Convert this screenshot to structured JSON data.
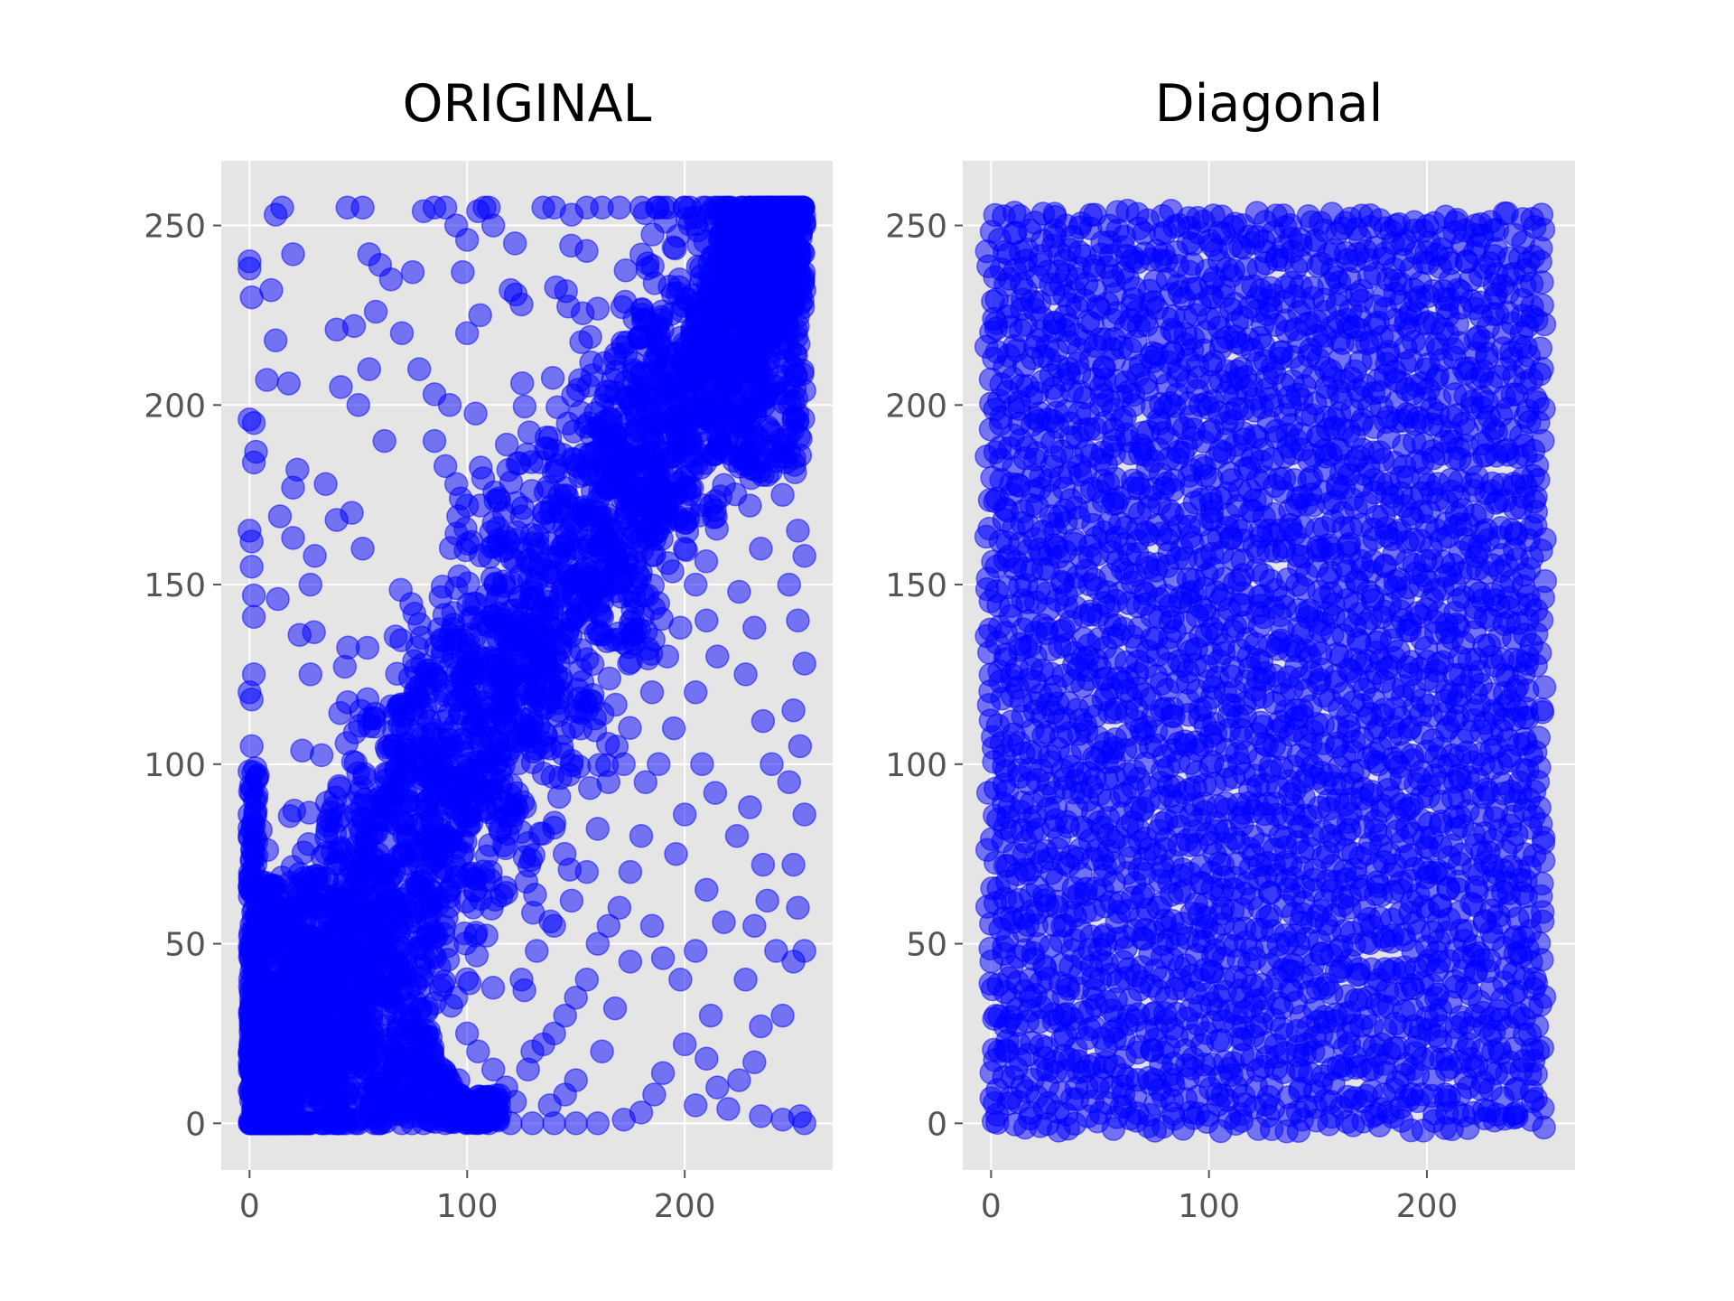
{
  "colors": {
    "panel_bg": "#E5E5E5",
    "grid": "#FFFFFF",
    "marker": "#0000FF",
    "tick_text": "#555555",
    "title_text": "#000000"
  },
  "chart_data": [
    {
      "type": "scatter",
      "title": "ORIGINAL",
      "xlabel": "",
      "ylabel": "",
      "xlim": [
        -13,
        268
      ],
      "ylim": [
        -13,
        268
      ],
      "xticks": [
        0,
        100,
        200
      ],
      "yticks": [
        0,
        50,
        100,
        150,
        200,
        250
      ],
      "xtick_labels": [
        "0",
        "100",
        "200"
      ],
      "ytick_labels": [
        "0",
        "50",
        "100",
        "150",
        "200",
        "250"
      ],
      "grid": true,
      "legend": "none",
      "marker_color": "#0000FF",
      "marker_alpha": 0.5,
      "points": [
        [
          0,
          240
        ],
        [
          0,
          238
        ],
        [
          1,
          230
        ],
        [
          2,
          195
        ],
        [
          0,
          196
        ],
        [
          3,
          187
        ],
        [
          2,
          184
        ],
        [
          0,
          165
        ],
        [
          1,
          162
        ],
        [
          1,
          155
        ],
        [
          2,
          147
        ],
        [
          2,
          141
        ],
        [
          0,
          120
        ],
        [
          2,
          125
        ],
        [
          1,
          118
        ],
        [
          1,
          105
        ],
        [
          0,
          98
        ],
        [
          1,
          92
        ],
        [
          0,
          86
        ],
        [
          0,
          80
        ],
        [
          1,
          73
        ],
        [
          0,
          66
        ],
        [
          12,
          253
        ],
        [
          15,
          255
        ],
        [
          20,
          242
        ],
        [
          10,
          232
        ],
        [
          12,
          218
        ],
        [
          8,
          207
        ],
        [
          18,
          206
        ],
        [
          22,
          182
        ],
        [
          20,
          177
        ],
        [
          14,
          169
        ],
        [
          20,
          163
        ],
        [
          13,
          146
        ],
        [
          23,
          136
        ],
        [
          28,
          125
        ],
        [
          40,
          221
        ],
        [
          45,
          255
        ],
        [
          52,
          255
        ],
        [
          48,
          222
        ],
        [
          55,
          242
        ],
        [
          58,
          226
        ],
        [
          60,
          239
        ],
        [
          65,
          235
        ],
        [
          42,
          205
        ],
        [
          50,
          200
        ],
        [
          55,
          210
        ],
        [
          62,
          190
        ],
        [
          47,
          170
        ],
        [
          52,
          160
        ],
        [
          35,
          178
        ],
        [
          40,
          168
        ],
        [
          30,
          158
        ],
        [
          28,
          150
        ],
        [
          80,
          254
        ],
        [
          85,
          255
        ],
        [
          90,
          255
        ],
        [
          95,
          250
        ],
        [
          100,
          246
        ],
        [
          105,
          254
        ],
        [
          108,
          255
        ],
        [
          110,
          255
        ],
        [
          112,
          250
        ],
        [
          98,
          237
        ],
        [
          120,
          232
        ],
        [
          125,
          228
        ],
        [
          122,
          245
        ],
        [
          75,
          237
        ],
        [
          70,
          220
        ],
        [
          78,
          210
        ],
        [
          85,
          203
        ],
        [
          92,
          200
        ],
        [
          100,
          220
        ],
        [
          106,
          225
        ],
        [
          85,
          190
        ],
        [
          90,
          183
        ],
        [
          95,
          178
        ],
        [
          100,
          172
        ],
        [
          135,
          255
        ],
        [
          140,
          255
        ],
        [
          148,
          253
        ],
        [
          155,
          255
        ],
        [
          162,
          255
        ],
        [
          170,
          255
        ],
        [
          180,
          255
        ],
        [
          190,
          255
        ],
        [
          200,
          255
        ],
        [
          210,
          255
        ],
        [
          220,
          255
        ],
        [
          230,
          255
        ],
        [
          240,
          255
        ],
        [
          250,
          255
        ],
        [
          255,
          250
        ],
        [
          250,
          245
        ],
        [
          245,
          240
        ],
        [
          255,
          232
        ],
        [
          252,
          222
        ],
        [
          248,
          212
        ],
        [
          255,
          204
        ],
        [
          250,
          196
        ],
        [
          253,
          186
        ],
        [
          245,
          175
        ],
        [
          252,
          165
        ],
        [
          255,
          158
        ],
        [
          248,
          150
        ],
        [
          252,
          140
        ],
        [
          255,
          128
        ],
        [
          250,
          115
        ],
        [
          253,
          105
        ],
        [
          248,
          95
        ],
        [
          255,
          86
        ],
        [
          250,
          72
        ],
        [
          252,
          60
        ],
        [
          255,
          48
        ],
        [
          250,
          45
        ],
        [
          255,
          0
        ],
        [
          253,
          2
        ],
        [
          230,
          172
        ],
        [
          235,
          160
        ],
        [
          225,
          148
        ],
        [
          232,
          138
        ],
        [
          228,
          125
        ],
        [
          236,
          112
        ],
        [
          240,
          100
        ],
        [
          230,
          88
        ],
        [
          224,
          80
        ],
        [
          236,
          72
        ],
        [
          238,
          62
        ],
        [
          232,
          55
        ],
        [
          242,
          48
        ],
        [
          228,
          40
        ],
        [
          235,
          27
        ],
        [
          200,
          160
        ],
        [
          205,
          150
        ],
        [
          210,
          140
        ],
        [
          215,
          130
        ],
        [
          205,
          120
        ],
        [
          195,
          110
        ],
        [
          208,
          100
        ],
        [
          214,
          92
        ],
        [
          200,
          86
        ],
        [
          196,
          75
        ],
        [
          210,
          65
        ],
        [
          218,
          56
        ],
        [
          205,
          48
        ],
        [
          198,
          40
        ],
        [
          212,
          30
        ],
        [
          200,
          22
        ],
        [
          190,
          14
        ],
        [
          186,
          8
        ],
        [
          180,
          3
        ],
        [
          172,
          1
        ],
        [
          160,
          0
        ],
        [
          150,
          0
        ],
        [
          140,
          0
        ],
        [
          130,
          0
        ],
        [
          120,
          0
        ],
        [
          110,
          0
        ],
        [
          100,
          0
        ],
        [
          90,
          0
        ],
        [
          80,
          0
        ],
        [
          70,
          0
        ],
        [
          60,
          0
        ],
        [
          50,
          0
        ],
        [
          40,
          0
        ],
        [
          180,
          80
        ],
        [
          175,
          70
        ],
        [
          170,
          60
        ],
        [
          165,
          55
        ],
        [
          160,
          50
        ],
        [
          155,
          40
        ],
        [
          150,
          35
        ],
        [
          145,
          30
        ],
        [
          140,
          25
        ],
        [
          135,
          22
        ],
        [
          130,
          20
        ],
        [
          128,
          15
        ],
        [
          175,
          45
        ],
        [
          185,
          55
        ],
        [
          190,
          46
        ],
        [
          168,
          32
        ],
        [
          162,
          20
        ],
        [
          150,
          12
        ],
        [
          145,
          8
        ],
        [
          138,
          5
        ],
        [
          210,
          18
        ],
        [
          215,
          10
        ],
        [
          225,
          12
        ],
        [
          232,
          17
        ],
        [
          245,
          30
        ],
        [
          205,
          5
        ],
        [
          220,
          4
        ],
        [
          235,
          2
        ],
        [
          245,
          1
        ],
        [
          95,
          35
        ],
        [
          100,
          25
        ],
        [
          105,
          20
        ],
        [
          112,
          15
        ],
        [
          118,
          10
        ],
        [
          122,
          6
        ],
        [
          108,
          3
        ],
        [
          96,
          12
        ],
        [
          88,
          8
        ],
        [
          80,
          15
        ],
        [
          125,
          40
        ],
        [
          132,
          48
        ],
        [
          140,
          55
        ],
        [
          148,
          62
        ],
        [
          155,
          70
        ],
        [
          160,
          82
        ],
        [
          165,
          95
        ],
        [
          172,
          100
        ],
        [
          185,
          120
        ],
        [
          192,
          130
        ],
        [
          198,
          138
        ],
        [
          188,
          100
        ],
        [
          182,
          95
        ]
      ],
      "density_band": {
        "description": "dense diagonal cloud",
        "centerline": [
          [
            0,
            8
          ],
          [
            255,
            255
          ]
        ],
        "half_width": [
          [
            0,
            45
          ],
          [
            60,
            55
          ],
          [
            130,
            60
          ],
          [
            200,
            45
          ],
          [
            255,
            25
          ]
        ],
        "dense_floor_below": [
          [
            0,
            70
          ],
          [
            60,
            60
          ],
          [
            100,
            0
          ]
        ]
      }
    },
    {
      "type": "scatter",
      "title": "Diagonal",
      "xlabel": "",
      "ylabel": "",
      "xlim": [
        -13,
        268
      ],
      "ylim": [
        -13,
        268
      ],
      "xticks": [
        0,
        100,
        200
      ],
      "yticks": [
        0,
        50,
        100,
        150,
        200,
        250
      ],
      "xtick_labels": [
        "0",
        "100",
        "200"
      ],
      "ytick_labels": [
        "0",
        "50",
        "100",
        "150",
        "200",
        "250"
      ],
      "grid": true,
      "legend": "none",
      "marker_color": "#0000FF",
      "marker_alpha": 0.5,
      "fill": "points cover the full range x 0–255, y 0–255 uniformly",
      "fill_range": {
        "x": [
          0,
          255
        ],
        "y": [
          0,
          255
        ]
      }
    }
  ]
}
